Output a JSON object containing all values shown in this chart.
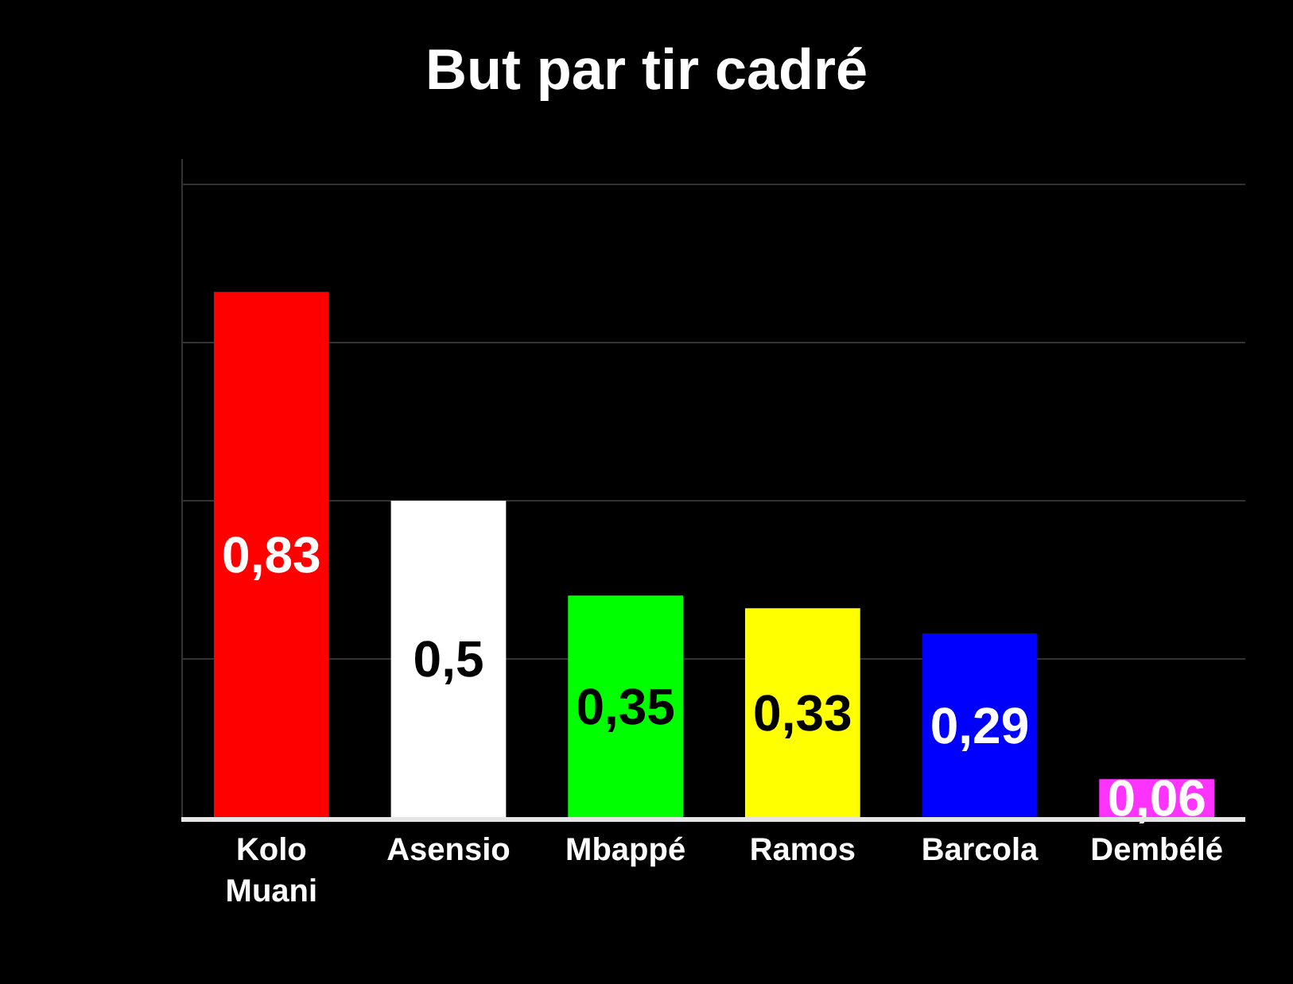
{
  "chart_data": {
    "type": "bar",
    "title": "But par tir cadré",
    "categories": [
      "Kolo\nMuani",
      "Asensio",
      "Mbappé",
      "Ramos",
      "Barcola",
      "Dembélé"
    ],
    "values": [
      0.83,
      0.5,
      0.35,
      0.33,
      0.29,
      0.06
    ],
    "value_labels": [
      "0,83",
      "0,5",
      "0,35",
      "0,33",
      "0,29",
      "0,06"
    ],
    "colors": [
      "#ff0000",
      "#ffffff",
      "#00ff00",
      "#ffff00",
      "#0000ff",
      "#ff33ff"
    ],
    "ylim": [
      0,
      1.04
    ],
    "yticks": [
      {
        "value": 0.25,
        "label": null
      },
      {
        "value": 0.5,
        "label": null
      },
      {
        "value": 0.75,
        "label": null
      },
      {
        "value": 1.0,
        "label": null
      }
    ],
    "grid": "y",
    "tick_labels": "x"
  }
}
